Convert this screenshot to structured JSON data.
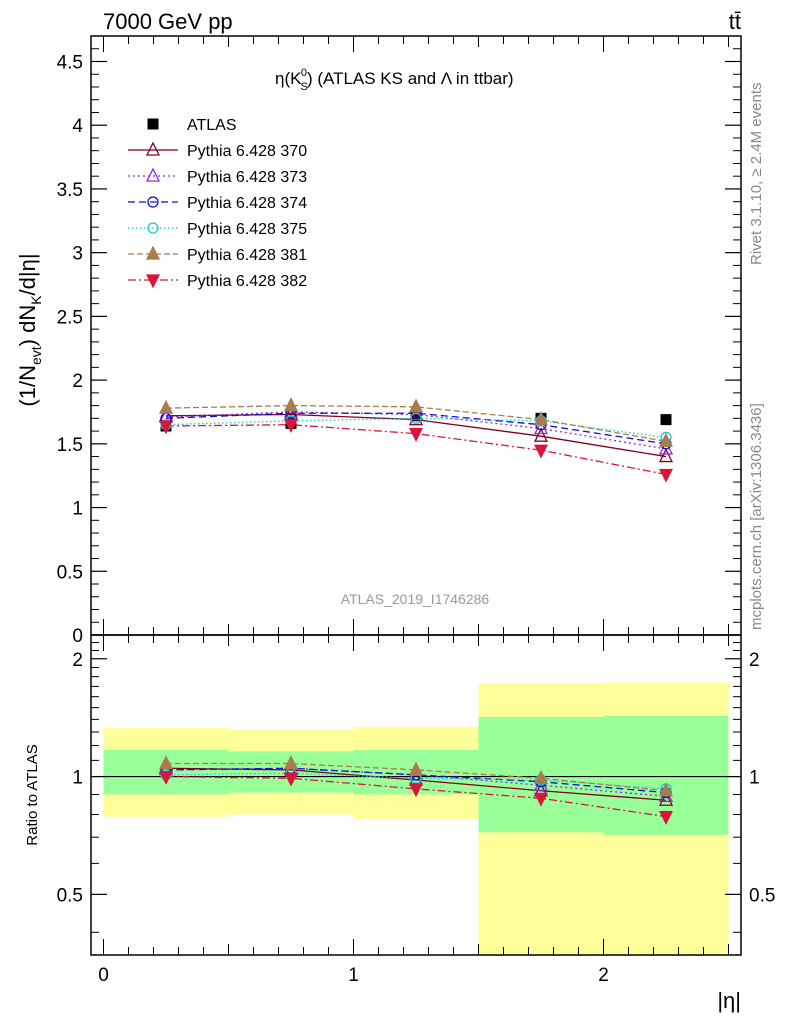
{
  "header": {
    "left_label": "7000 GeV pp",
    "right_label": "tt̄"
  },
  "side_labels": {
    "rivet": "Rivet 3.1.10, ≥ 2.4M events",
    "mcplots": "mcplots.cern.ch [arXiv:1306.3436]"
  },
  "watermark": "ATLAS_2019_I1746286",
  "chart_data": [
    {
      "type": "line",
      "panel": "main",
      "title": "η(K_S^0) (ATLAS KS and Λ in ttbar)",
      "title_parts": {
        "pre": "η(K",
        "sub": "S",
        "sup": "0",
        "post": ") (ATLAS KS and Λ in ttbar)"
      },
      "ylabel": "(1/N_evt) dN_K/d|η|",
      "ylabel_parts": {
        "a": "(1/N",
        "sub1": "evt",
        "b": ") dN",
        "sub2": "K",
        "c": "/d|η|"
      },
      "xlabel": "|η|",
      "xlim": [
        -0.05,
        2.55
      ],
      "ylim": [
        0,
        4.7
      ],
      "yticks": [
        0,
        0.5,
        1,
        1.5,
        2,
        2.5,
        3,
        3.5,
        4,
        4.5
      ],
      "ytick_labels": [
        "0",
        "0.5",
        "1",
        "1.5",
        "2",
        "2.5",
        "3",
        "3.5",
        "4",
        "4.5"
      ],
      "legend_position": "top-left",
      "x": [
        0.25,
        0.75,
        1.25,
        1.75,
        2.25
      ],
      "series": [
        {
          "name": "ATLAS",
          "color": "#000000",
          "marker": "square",
          "dash": "none",
          "values": [
            1.64,
            1.66,
            1.72,
            1.7,
            1.69
          ]
        },
        {
          "name": "Pythia 6.428 370",
          "color": "#800020",
          "marker": "triangle-open",
          "dash": "solid",
          "values": [
            1.72,
            1.73,
            1.69,
            1.56,
            1.4
          ]
        },
        {
          "name": "Pythia 6.428 373",
          "color": "#8a2be2",
          "marker": "triangle-open",
          "dash": "dotted",
          "values": [
            1.71,
            1.75,
            1.73,
            1.62,
            1.46
          ]
        },
        {
          "name": "Pythia 6.428 374",
          "color": "#1010d0",
          "marker": "circle-open",
          "dash": "dashed",
          "values": [
            1.7,
            1.74,
            1.74,
            1.65,
            1.5
          ]
        },
        {
          "name": "Pythia 6.428 375",
          "color": "#20c8c8",
          "marker": "circle-open",
          "dash": "dotted-fine",
          "values": [
            1.65,
            1.68,
            1.7,
            1.68,
            1.55
          ]
        },
        {
          "name": "Pythia 6.428 381",
          "color": "#a87c4f",
          "marker": "triangle-filled",
          "dash": "dashed-long",
          "values": [
            1.78,
            1.8,
            1.79,
            1.69,
            1.52
          ]
        },
        {
          "name": "Pythia 6.428 382",
          "color": "#dc143c",
          "marker": "triangle-down-filled",
          "dash": "dashdot",
          "values": [
            1.64,
            1.65,
            1.58,
            1.45,
            1.26
          ]
        }
      ]
    },
    {
      "type": "line",
      "panel": "ratio",
      "ylabel": "Ratio to ATLAS",
      "xlabel": "|η|",
      "xlim": [
        -0.05,
        2.55
      ],
      "ylim": [
        0.35,
        2.3
      ],
      "yticks": [
        0.5,
        1,
        2
      ],
      "ytick_labels": [
        "0.5",
        "1",
        "2"
      ],
      "xticks": [
        0,
        1,
        2
      ],
      "xtick_labels": [
        "0",
        "1",
        "2"
      ],
      "reference": 1,
      "bands": {
        "bin_edges": [
          0,
          0.5,
          1.0,
          1.5,
          2.0,
          2.5
        ],
        "outer": {
          "color": "#ffff99",
          "low": [
            0.79,
            0.8,
            0.78,
            0.3,
            0.3
          ],
          "high": [
            1.33,
            1.32,
            1.34,
            1.73,
            1.74
          ]
        },
        "inner": {
          "color": "#99ff99",
          "low": [
            0.9,
            0.91,
            0.9,
            0.72,
            0.71
          ],
          "high": [
            1.17,
            1.16,
            1.17,
            1.42,
            1.43
          ]
        }
      },
      "x": [
        0.25,
        0.75,
        1.25,
        1.75,
        2.25
      ],
      "series": [
        {
          "name": "Pythia 6.428 370",
          "color": "#800020",
          "marker": "triangle-open",
          "dash": "solid",
          "values": [
            1.05,
            1.04,
            0.98,
            0.92,
            0.87
          ]
        },
        {
          "name": "Pythia 6.428 373",
          "color": "#8a2be2",
          "marker": "triangle-open",
          "dash": "dotted",
          "values": [
            1.04,
            1.05,
            1.01,
            0.95,
            0.89
          ]
        },
        {
          "name": "Pythia 6.428 374",
          "color": "#1010d0",
          "marker": "circle-open",
          "dash": "dashed",
          "values": [
            1.04,
            1.05,
            1.01,
            0.97,
            0.91
          ]
        },
        {
          "name": "Pythia 6.428 375",
          "color": "#20c8c8",
          "marker": "circle-open",
          "dash": "dotted-fine",
          "values": [
            1.01,
            1.02,
            0.99,
            0.98,
            0.93
          ]
        },
        {
          "name": "Pythia 6.428 381",
          "color": "#a87c4f",
          "marker": "triangle-filled",
          "dash": "dashed-long",
          "values": [
            1.08,
            1.08,
            1.04,
            0.99,
            0.92
          ]
        },
        {
          "name": "Pythia 6.428 382",
          "color": "#dc143c",
          "marker": "triangle-down-filled",
          "dash": "dashdot",
          "values": [
            1.0,
            0.99,
            0.93,
            0.88,
            0.79
          ]
        }
      ]
    }
  ]
}
